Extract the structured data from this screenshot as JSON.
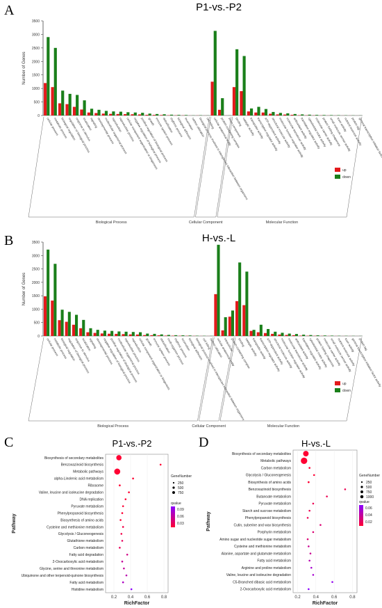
{
  "colors": {
    "up": "#e31a1c",
    "down": "#1a7f1a",
    "axis": "#444444",
    "grid": "#bbbbbb",
    "qlow": "#ff0033",
    "qhigh": "#8a00ff"
  },
  "chart_data": [
    {
      "panel": "A",
      "type": "bar",
      "title": "P1-vs.-P2",
      "ylabel": "Number of Genes",
      "ylim": [
        0,
        3500
      ],
      "yticks": [
        0,
        500,
        1000,
        1500,
        2000,
        2500,
        3000,
        3500
      ],
      "legend": [
        "up",
        "down"
      ],
      "categories": [
        "cellular process",
        "metabolic process",
        "biological regulation",
        "regulation of biological process",
        "response to stimulus",
        "localization",
        "signaling",
        "developmental process",
        "multicellular organismal process",
        "reproduction",
        "reproductive process",
        "cellular component organization or biogenesis",
        "negative regulation of biological process",
        "positive regulation of biological process",
        "growth",
        "immune system process",
        "detoxification",
        "rhythmic process",
        "biological adhesion",
        "locomotion",
        "carbon utilization",
        "biological process involved in interspecies interaction between organisms",
        "cell killing",
        "cellular anatomical entity",
        "protein-containing complex",
        "virion component",
        "binding",
        "catalytic activity",
        "transporter activity",
        "transcription regulator activity",
        "ATP-dependent activity",
        "structural molecule activity",
        "molecular function regulator activity",
        "molecular transducer activity",
        "antioxidant activity",
        "translation regulator activity",
        "cytoskeletal motor activity",
        "molecular carrier activity",
        "protein folding chaperone",
        "small molecule sensor activity",
        "toxin activity",
        "nutrient reservoir activity",
        "protein tag",
        "general transcription initiation factor activity"
      ],
      "series": [
        {
          "name": "up",
          "values": [
            1200,
            1050,
            450,
            420,
            320,
            220,
            110,
            90,
            70,
            60,
            55,
            50,
            45,
            40,
            25,
            22,
            18,
            10,
            8,
            6,
            2,
            4,
            2,
            1250,
            210,
            2,
            1050,
            900,
            150,
            110,
            110,
            65,
            40,
            35,
            25,
            12,
            8,
            6,
            5,
            3,
            2,
            2,
            2,
            1
          ]
        },
        {
          "name": "down",
          "values": [
            2900,
            2500,
            920,
            800,
            760,
            560,
            250,
            210,
            170,
            150,
            140,
            120,
            110,
            100,
            70,
            55,
            45,
            30,
            22,
            18,
            6,
            10,
            4,
            3130,
            640,
            5,
            2450,
            2200,
            260,
            320,
            240,
            130,
            95,
            80,
            55,
            40,
            30,
            22,
            18,
            15,
            12,
            8,
            6,
            4
          ]
        }
      ],
      "groups": [
        {
          "label": "Biological Process",
          "start": 0,
          "end": 22
        },
        {
          "label": "Cellular Component",
          "start": 23,
          "end": 25
        },
        {
          "label": "Molecular Function",
          "start": 26,
          "end": 43
        }
      ]
    },
    {
      "panel": "B",
      "type": "bar",
      "title": "H-vs.-L",
      "ylabel": "Number of Genes",
      "ylim": [
        0,
        3500
      ],
      "yticks": [
        0,
        500,
        1000,
        1500,
        2000,
        2500,
        3000,
        3500
      ],
      "legend": [
        "up",
        "down"
      ],
      "categories": [
        "cellular process",
        "metabolic process",
        "biological regulation",
        "regulation of biological process",
        "response to stimulus",
        "localization",
        "signaling",
        "developmental process",
        "negative regulation of biological process",
        "positive regulation of biological process",
        "multicellular organismal process",
        "reproductive process",
        "reproduction",
        "cellular component organization or biogenesis",
        "growth",
        "immune system process",
        "detoxification",
        "multi-organism process",
        "rhythmic process",
        "locomotion",
        "biological adhesion",
        "biological process involved in interspecies interaction between organisms",
        "cell killing",
        "carbon utilization",
        "cellular anatomical entity",
        "intracellular",
        "protein-containing complex",
        "binding",
        "catalytic activity",
        "transporter activity",
        "transcription regulator activity",
        "ATP-dependent activity",
        "structural molecule activity",
        "molecular function regulator activity",
        "molecular transducer activity",
        "antioxidant activity",
        "translation regulator activity",
        "cytoskeletal motor activity",
        "protein folding chaperone",
        "molecular carrier activity",
        "small molecule sensor activity",
        "nutrient reservoir activity",
        "toxin activity",
        "general transcription initiation factor activity",
        "protein tag"
      ],
      "series": [
        {
          "name": "up",
          "values": [
            1480,
            1320,
            590,
            530,
            420,
            290,
            140,
            115,
            95,
            85,
            80,
            70,
            60,
            55,
            35,
            30,
            25,
            15,
            12,
            10,
            8,
            5,
            3,
            2,
            1560,
            210,
            720,
            1300,
            1150,
            190,
            140,
            110,
            80,
            55,
            40,
            30,
            15,
            10,
            8,
            6,
            4,
            3,
            2,
            2,
            1
          ]
        },
        {
          "name": "down",
          "values": [
            3220,
            2690,
            980,
            900,
            790,
            600,
            290,
            230,
            200,
            190,
            170,
            160,
            150,
            140,
            90,
            80,
            60,
            40,
            30,
            25,
            20,
            12,
            8,
            5,
            3400,
            700,
            950,
            2740,
            2400,
            230,
            420,
            260,
            160,
            120,
            90,
            75,
            50,
            35,
            25,
            20,
            15,
            10,
            8,
            6,
            4
          ]
        }
      ],
      "groups": [
        {
          "label": "Biological Process",
          "start": 0,
          "end": 23
        },
        {
          "label": "Cellular Component",
          "start": 24,
          "end": 26
        },
        {
          "label": "Molecular Function",
          "start": 27,
          "end": 44
        }
      ]
    },
    {
      "panel": "C",
      "type": "scatter",
      "title": "P1-vs.-P2",
      "xlabel": "RichFactor",
      "ylabel": "Pathway",
      "xlim": [
        0.1,
        0.85
      ],
      "xticks": [
        0.2,
        0.4,
        0.6,
        0.8
      ],
      "size_legend_title": "GeneNumber",
      "size_legend": [
        250,
        500,
        750
      ],
      "color_legend_title": "qvalue",
      "color_legend": [
        0.09,
        0.06,
        0.03
      ],
      "qrange": [
        0.01,
        0.11
      ],
      "points": [
        {
          "pathway": "Biosynthesis of secondary metabolites",
          "x": 0.26,
          "gene": 1000,
          "q": 0.0
        },
        {
          "pathway": "Benzoxazinoid biosynthesis",
          "x": 0.76,
          "gene": 10,
          "q": 0.0
        },
        {
          "pathway": "Metabolic pathways",
          "x": 0.24,
          "gene": 1300,
          "q": 0.0
        },
        {
          "pathway": "alpha-Linolenic acid metabolism",
          "x": 0.43,
          "gene": 40,
          "q": 0.01
        },
        {
          "pathway": "Ribosome",
          "x": 0.27,
          "gene": 130,
          "q": 0.01
        },
        {
          "pathway": "Valine, leucine and isoleucine degradation",
          "x": 0.38,
          "gene": 50,
          "q": 0.01
        },
        {
          "pathway": "DNA replication",
          "x": 0.34,
          "gene": 60,
          "q": 0.01
        },
        {
          "pathway": "Pyruvate metabolism",
          "x": 0.31,
          "gene": 70,
          "q": 0.01
        },
        {
          "pathway": "Phenylpropanoid biosynthesis",
          "x": 0.3,
          "gene": 90,
          "q": 0.01
        },
        {
          "pathway": "Biosynthesis of amino acids",
          "x": 0.28,
          "gene": 120,
          "q": 0.01
        },
        {
          "pathway": "Cysteine and methionine metabolism",
          "x": 0.31,
          "gene": 70,
          "q": 0.02
        },
        {
          "pathway": "Glycolysis / Gluconeogenesis",
          "x": 0.29,
          "gene": 80,
          "q": 0.02
        },
        {
          "pathway": "Glutathione metabolism",
          "x": 0.3,
          "gene": 75,
          "q": 0.03
        },
        {
          "pathway": "Carbon metabolism",
          "x": 0.27,
          "gene": 110,
          "q": 0.03
        },
        {
          "pathway": "Fatty acid degradation",
          "x": 0.36,
          "gene": 45,
          "q": 0.05
        },
        {
          "pathway": "2-Oxocarboxylic acid metabolism",
          "x": 0.3,
          "gene": 60,
          "q": 0.06
        },
        {
          "pathway": "Glycine, serine and threonine metabolism",
          "x": 0.32,
          "gene": 55,
          "q": 0.06
        },
        {
          "pathway": "Ubiquinone and other terpenoid-quinone biosynthesis",
          "x": 0.35,
          "gene": 40,
          "q": 0.07
        },
        {
          "pathway": "Fatty acid metabolism",
          "x": 0.31,
          "gene": 60,
          "q": 0.08
        },
        {
          "pathway": "Histidine metabolism",
          "x": 0.41,
          "gene": 25,
          "q": 0.11
        }
      ]
    },
    {
      "panel": "D",
      "type": "scatter",
      "title": "H-vs.-L",
      "xlabel": "RichFactor",
      "ylabel": "Pathway",
      "xlim": [
        0.15,
        0.85
      ],
      "xticks": [
        0.2,
        0.4,
        0.6,
        0.8
      ],
      "size_legend_title": "GeneNumber",
      "size_legend": [
        250,
        500,
        750,
        1000
      ],
      "color_legend_title": "qvalue",
      "color_legend": [
        0.06,
        0.04,
        0.02
      ],
      "qrange": [
        0.0,
        0.065
      ],
      "points": [
        {
          "pathway": "Biosynthesis of secondary metabolites",
          "x": 0.29,
          "gene": 1100,
          "q": 0.0
        },
        {
          "pathway": "Metabolic pathways",
          "x": 0.27,
          "gene": 1500,
          "q": 0.0
        },
        {
          "pathway": "Carbon metabolism",
          "x": 0.33,
          "gene": 120,
          "q": 0.0
        },
        {
          "pathway": "Glycolysis / Gluconeogenesis",
          "x": 0.38,
          "gene": 90,
          "q": 0.0
        },
        {
          "pathway": "Biosynthesis of amino acids",
          "x": 0.32,
          "gene": 130,
          "q": 0.0
        },
        {
          "pathway": "Benzoxazinoid biosynthesis",
          "x": 0.72,
          "gene": 10,
          "q": 0.01
        },
        {
          "pathway": "Butanoate metabolism",
          "x": 0.52,
          "gene": 20,
          "q": 0.01
        },
        {
          "pathway": "Pyruvate metabolism",
          "x": 0.37,
          "gene": 80,
          "q": 0.01
        },
        {
          "pathway": "Starch and sucrose metabolism",
          "x": 0.33,
          "gene": 100,
          "q": 0.01
        },
        {
          "pathway": "Phenylpropanoid biosynthesis",
          "x": 0.31,
          "gene": 110,
          "q": 0.01
        },
        {
          "pathway": "Cutin, suberine and wax biosynthesis",
          "x": 0.45,
          "gene": 30,
          "q": 0.02
        },
        {
          "pathway": "Porphyrin metabolism",
          "x": 0.37,
          "gene": 40,
          "q": 0.02
        },
        {
          "pathway": "Amino sugar and nucleotide sugar metabolism",
          "x": 0.31,
          "gene": 90,
          "q": 0.02
        },
        {
          "pathway": "Cysteine and methionine metabolism",
          "x": 0.32,
          "gene": 80,
          "q": 0.03
        },
        {
          "pathway": "Alanine, aspartate and glutamate metabolism",
          "x": 0.34,
          "gene": 60,
          "q": 0.03
        },
        {
          "pathway": "Fatty acid metabolism",
          "x": 0.33,
          "gene": 70,
          "q": 0.04
        },
        {
          "pathway": "Arginine and proline metabolism",
          "x": 0.35,
          "gene": 55,
          "q": 0.05
        },
        {
          "pathway": "Valine, leucine and isoleucine degradation",
          "x": 0.37,
          "gene": 50,
          "q": 0.05
        },
        {
          "pathway": "C5-Branched dibasic acid metabolism",
          "x": 0.58,
          "gene": 15,
          "q": 0.06
        },
        {
          "pathway": "2-Oxocarboxylic acid metabolism",
          "x": 0.32,
          "gene": 60,
          "q": 0.065
        }
      ]
    }
  ]
}
